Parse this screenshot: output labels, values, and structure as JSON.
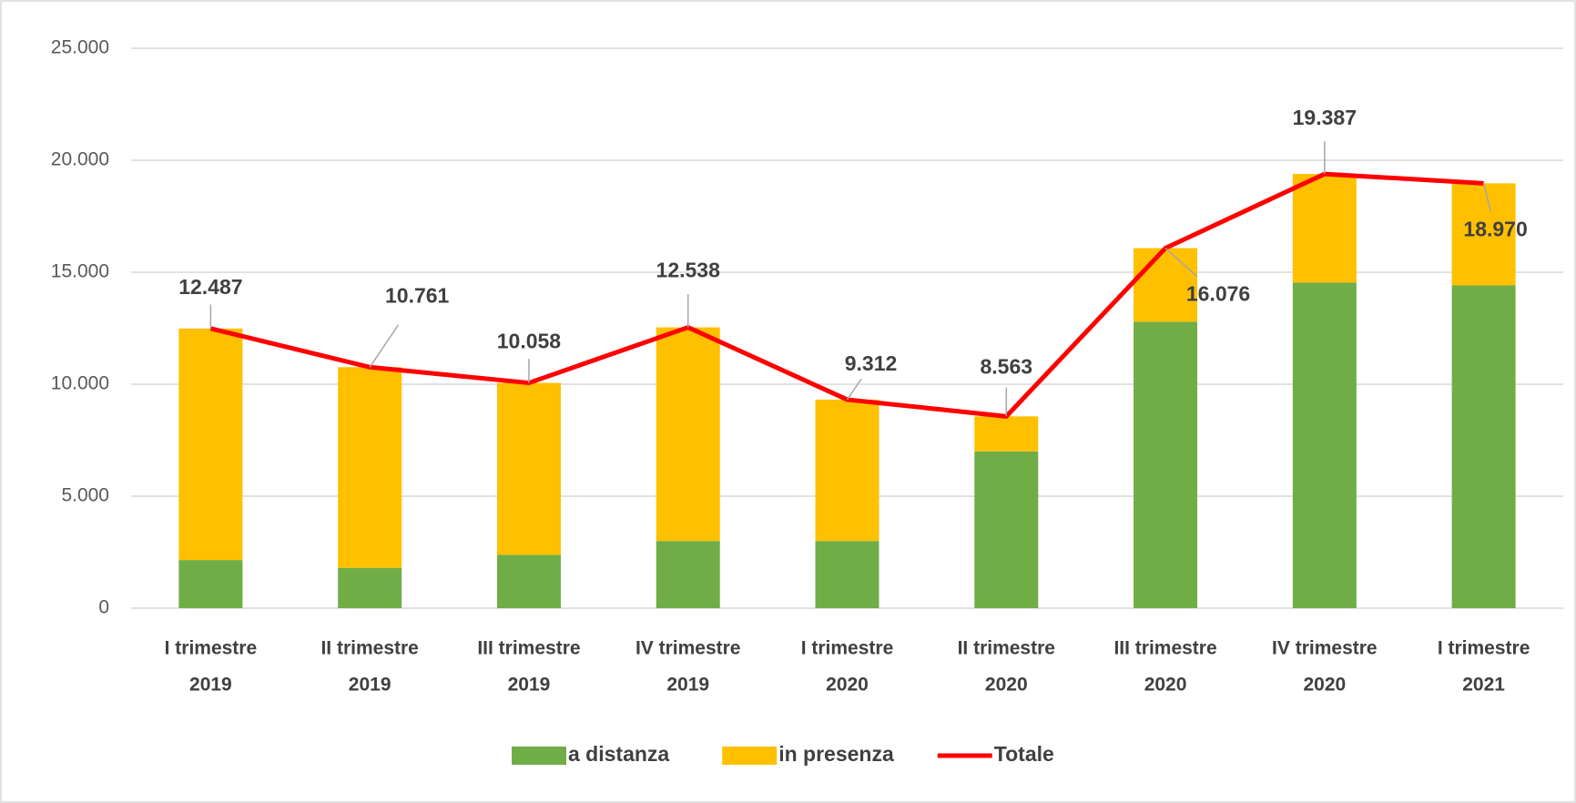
{
  "chart_data": {
    "type": "bar",
    "stacked": true,
    "categories": [
      [
        "I trimestre",
        "2019"
      ],
      [
        "II trimestre",
        "2019"
      ],
      [
        "III trimestre",
        "2019"
      ],
      [
        "IV trimestre",
        "2019"
      ],
      [
        "I trimestre",
        "2020"
      ],
      [
        "II trimestre",
        "2020"
      ],
      [
        "III trimestre",
        "2020"
      ],
      [
        "IV trimestre",
        "2020"
      ],
      [
        "I trimestre",
        "2021"
      ]
    ],
    "series": [
      {
        "name": "a distanza",
        "type": "bar",
        "color": "#70ad47",
        "values": [
          2150,
          1800,
          2380,
          3000,
          3000,
          7000,
          12790,
          14540,
          14410
        ]
      },
      {
        "name": "in presenza",
        "type": "bar",
        "color": "#ffc000",
        "values": [
          10337,
          8961,
          7678,
          9538,
          6312,
          1563,
          3286,
          4847,
          4560
        ]
      },
      {
        "name": "Totale",
        "type": "line",
        "color": "#ff0000",
        "values": [
          12487,
          10761,
          10058,
          12538,
          9312,
          8563,
          16076,
          19387,
          18970
        ],
        "value_labels": [
          "12.487",
          "10.761",
          "10.058",
          "12.538",
          "9.312",
          "8.563",
          "16.076",
          "19.387",
          "18.970"
        ]
      }
    ],
    "ylim": [
      0,
      25000
    ],
    "yticks": [
      0,
      {
        "value": 5000,
        "label": "5.000"
      },
      {
        "value": 10000,
        "label": "10.000"
      },
      {
        "value": 15000,
        "label": "15.000"
      },
      {
        "value": 20000,
        "label": "20.000"
      },
      {
        "value": 25000,
        "label": "25.000"
      }
    ],
    "grid": true,
    "legend": "bottom"
  }
}
